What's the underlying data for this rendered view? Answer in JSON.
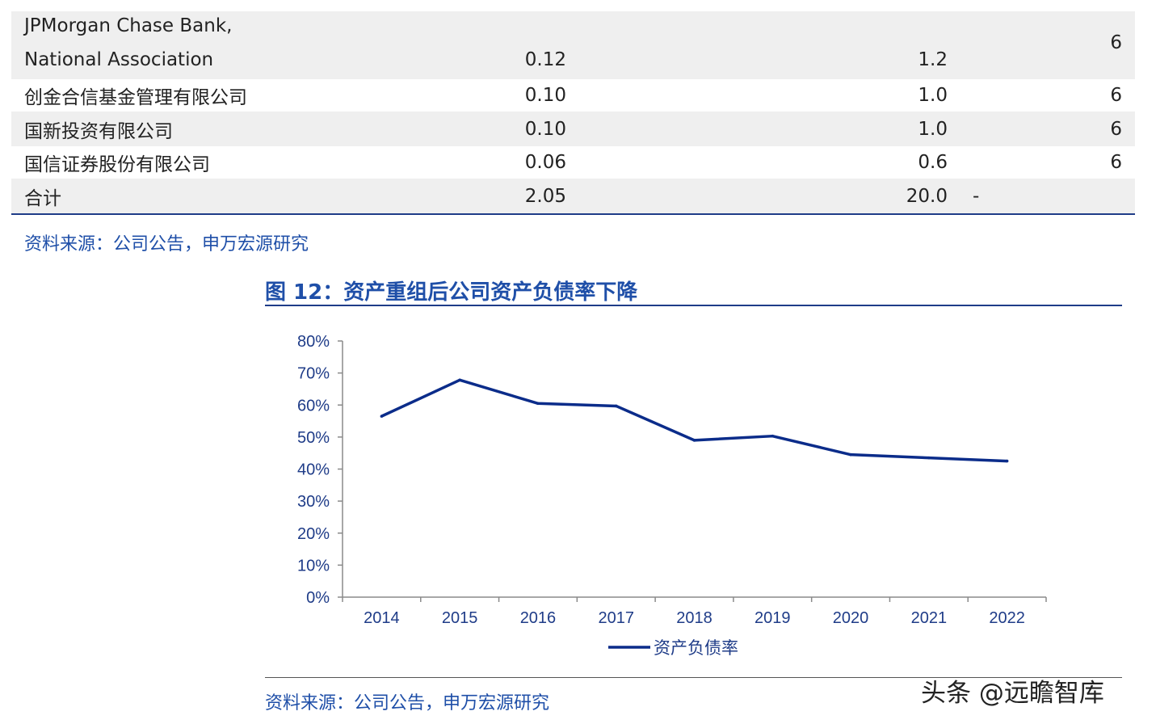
{
  "table": {
    "rows": [
      {
        "name_line1": "JPMorgan Chase Bank,",
        "name_line2": "National Association",
        "v1": "0.12",
        "v2": "1.2",
        "v3": "6",
        "dash": ""
      },
      {
        "name": "创金合信基金管理有限公司",
        "v1": "0.10",
        "v2": "1.0",
        "v3": "6",
        "dash": ""
      },
      {
        "name": "国新投资有限公司",
        "v1": "0.10",
        "v2": "1.0",
        "v3": "6",
        "dash": ""
      },
      {
        "name": "国信证券股份有限公司",
        "v1": "0.06",
        "v2": "0.6",
        "v3": "6",
        "dash": ""
      },
      {
        "name": "合计",
        "v1": "2.05",
        "v2": "20.0",
        "v3": "",
        "dash": "-"
      }
    ]
  },
  "source_top": "资料来源：公司公告，申万宏源研究",
  "figure": {
    "title": "图 12：资产重组后公司资产负债率下降"
  },
  "chart_data": {
    "type": "line",
    "x": [
      "2014",
      "2015",
      "2016",
      "2017",
      "2018",
      "2019",
      "2020",
      "2021",
      "2022"
    ],
    "series": [
      {
        "name": "资产负债率",
        "values": [
          56.5,
          67.8,
          60.5,
          59.7,
          49.0,
          50.3,
          44.5,
          43.5,
          42.5
        ],
        "color": "#0b2c8a"
      }
    ],
    "ylim": [
      0,
      80
    ],
    "yticks": [
      "0%",
      "10%",
      "20%",
      "30%",
      "40%",
      "50%",
      "60%",
      "70%",
      "80%"
    ],
    "legend": "bottom-center",
    "grid": false
  },
  "source_bottom": "资料来源：公司公告，申万宏源研究",
  "watermark": "头条 @远瞻智库"
}
